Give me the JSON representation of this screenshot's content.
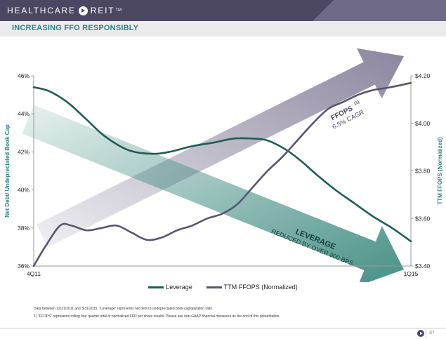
{
  "header": {
    "brand": "HEALTHCARE",
    "brand_suffix": "REIT",
    "trademark": "TM",
    "colors": {
      "bar": "#4b4763",
      "accent": "#6e6987"
    }
  },
  "slide_title": "INCREASING FFO RESPONSIBLY",
  "chart_data": {
    "type": "line",
    "x_labels": [
      "4Q11",
      "1Q15"
    ],
    "left_axis": {
      "label": "Net Debt/ Undepreciated Book Cap",
      "min": 36,
      "max": 46,
      "step": 2,
      "tick_labels": [
        "36%",
        "38%",
        "40%",
        "42%",
        "44%",
        "46%"
      ]
    },
    "right_axis": {
      "label": "TTM FFOPS (Normalized)",
      "min": 3.4,
      "max": 4.2,
      "step": 0.2,
      "tick_labels": [
        "$3.40",
        "$3.60",
        "$3.80",
        "$4.00",
        "$4.20"
      ]
    },
    "series": [
      {
        "name": "Leverage",
        "axis": "left",
        "color": "#1f5d55",
        "x": [
          0,
          0.04,
          0.09,
          0.14,
          0.19,
          0.25,
          0.31,
          0.36,
          0.42,
          0.48,
          0.53,
          0.58,
          0.62,
          0.67,
          0.71,
          0.75,
          0.8,
          0.85,
          0.9,
          0.95,
          1
        ],
        "values": [
          45.4,
          45.2,
          44.6,
          43.7,
          42.8,
          42.1,
          41.9,
          42.0,
          42.3,
          42.5,
          42.7,
          42.7,
          42.6,
          42.1,
          41.5,
          40.8,
          40.0,
          39.3,
          38.6,
          38.0,
          37.3
        ]
      },
      {
        "name": "TTM FFOPS (Normalized)",
        "axis": "right",
        "color": "#5a5470",
        "x": [
          0,
          0.03,
          0.07,
          0.1,
          0.14,
          0.18,
          0.22,
          0.26,
          0.3,
          0.34,
          0.38,
          0.42,
          0.46,
          0.5,
          0.54,
          0.58,
          0.62,
          0.66,
          0.7,
          0.74,
          0.78,
          0.82,
          0.86,
          0.9,
          0.94,
          1
        ],
        "values": [
          3.4,
          3.48,
          3.57,
          3.57,
          3.55,
          3.56,
          3.57,
          3.54,
          3.51,
          3.52,
          3.55,
          3.57,
          3.6,
          3.62,
          3.66,
          3.73,
          3.8,
          3.86,
          3.93,
          4.0,
          4.06,
          4.09,
          4.12,
          4.14,
          4.15,
          4.17
        ]
      }
    ],
    "annotations": {
      "ffops_title": "FFOPS",
      "ffops_footnote_mark": "(1)",
      "ffops_subtitle": "6.5% CAGR",
      "leverage_title": "LEVERAGE",
      "leverage_subtitle": "REDUCED BY OVER 800 BPS",
      "arrow_colors": {
        "ffops": "#857f99",
        "leverage": "#3d8a7f"
      }
    },
    "legend_position": "bottom",
    "grid": false
  },
  "footnotes": {
    "line1": "Data between 12/31/2011 and 3/31/2015. \"Leverage\" represents net debt to undepreciated book capitalization ratio.",
    "line2": "1)     \"FFOPS\" represents rolling four quarter total of normalized FFO per share results. Please see non-GAAP financial measures as the end of this presentation."
  },
  "page_number": "37"
}
